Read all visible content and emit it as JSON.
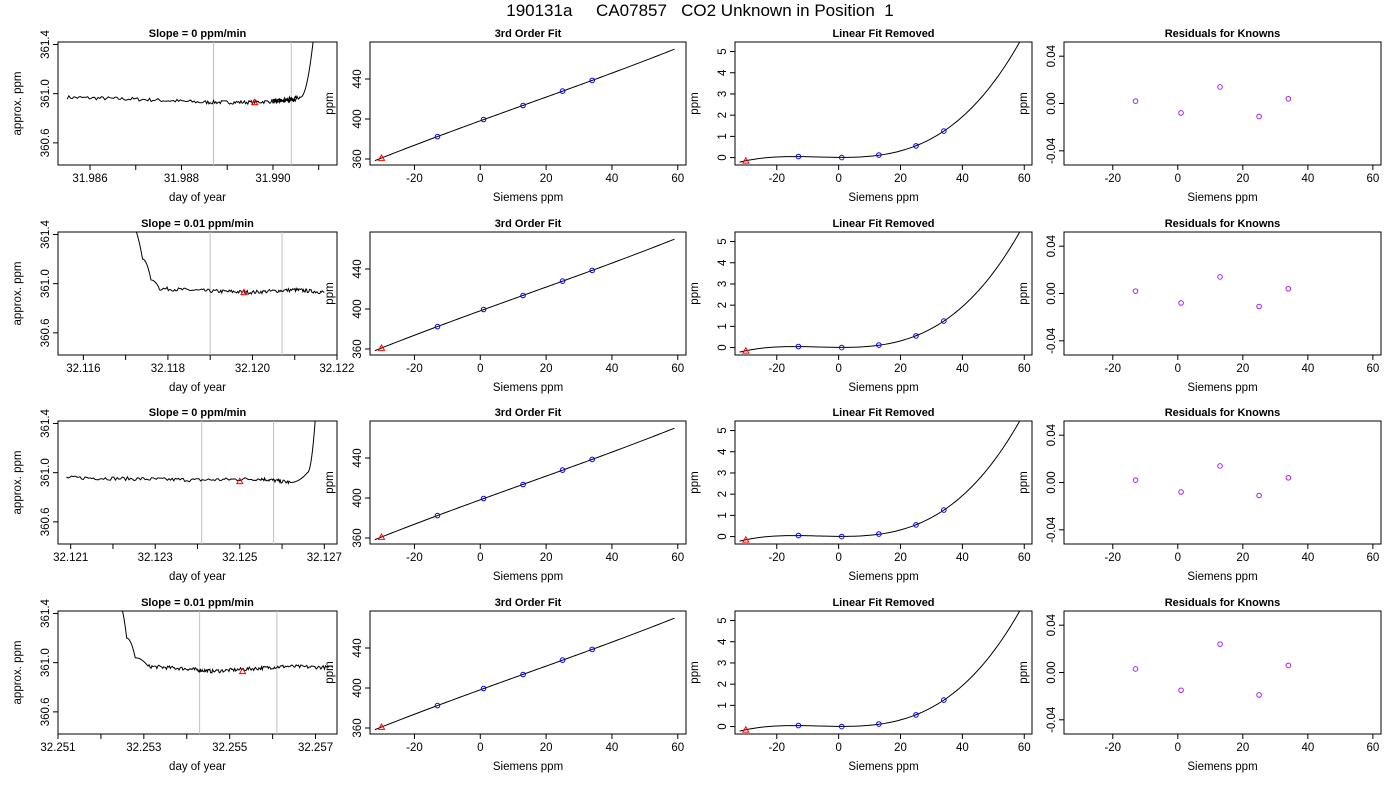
{
  "header": {
    "title_parts": [
      "190131a",
      "CA07857",
      "CO2 Unknown in Position",
      "1"
    ]
  },
  "colors": {
    "line": "#000000",
    "known_points": "#0000FF",
    "unknown_points": "#FF0000",
    "residual_points": "#A020F0",
    "window_lines": "#BEBEBE"
  },
  "panel_labels": {
    "ts_ylabel": "approx. ppm",
    "ts_xlabel": "day of year",
    "fit_title": "3rd Order Fit",
    "fit_ylabel": "ppm",
    "fit_xlabel": "Siemens ppm",
    "lin_title": "Linear Fit Removed",
    "lin_ylabel": "ppm",
    "lin_xlabel": "Siemens ppm",
    "res_title": "Residuals for Knowns",
    "res_ylabel": "ppm",
    "res_xlabel": "Siemens ppm"
  },
  "chart_data": {
    "rows": [
      {
        "timeseries": {
          "type": "line",
          "title": "Slope =  0  ppm/min",
          "xlim": [
            31.9853,
            31.9914
          ],
          "ylim": [
            360.42,
            361.42
          ],
          "xticks": [
            31.986,
            31.988,
            31.99
          ],
          "xtick_labels": [
            "31.986",
            "31.988",
            "31.990"
          ],
          "xminor": [
            31.987,
            31.989,
            31.991
          ],
          "yticks": [
            360.6,
            361.0,
            361.4
          ],
          "ytick_labels": [
            "360.6",
            "361.0",
            "361.4"
          ],
          "window": [
            31.9887,
            31.9904
          ],
          "marker": [
            31.9896,
            360.93
          ],
          "trace": [
            [
              31.9855,
              360.97
            ],
            [
              31.987,
              360.955
            ],
            [
              31.9885,
              360.93
            ],
            [
              31.9895,
              360.93
            ],
            [
              31.9905,
              360.945
            ],
            [
              31.99,
              360.94
            ],
            [
              31.9906,
              360.97
            ],
            [
              31.9909,
              361.5
            ]
          ]
        },
        "fit": {
          "type": "line",
          "xlim": [
            -33.5,
            62.5
          ],
          "ylim": [
            354,
            477
          ],
          "knowns": [
            [
              -13,
              382.4
            ],
            [
              1,
              399.5
            ],
            [
              13,
              413.5
            ],
            [
              25,
              427.9
            ],
            [
              34,
              438.6
            ]
          ],
          "unknown": [
            -30,
            361.0
          ]
        },
        "linear_removed": {
          "type": "line",
          "xlim": [
            -33.5,
            62.5
          ],
          "ylim": [
            -0.35,
            5.45
          ],
          "yticks": [
            0,
            1,
            2,
            3,
            4,
            5
          ],
          "knowns": [
            [
              -13,
              0.05
            ],
            [
              1,
              0.0
            ],
            [
              13,
              0.12
            ],
            [
              25,
              0.55
            ],
            [
              34,
              1.25
            ]
          ],
          "unknown": [
            -30,
            -0.15
          ]
        },
        "residuals": {
          "type": "scatter",
          "xlim": [
            -35,
            62.5
          ],
          "ylim": [
            -0.052,
            0.052
          ],
          "yticks": [
            -0.04,
            0.0,
            0.04
          ],
          "ytick_labels": [
            "-0.04",
            "0.00",
            "0.04"
          ],
          "points": [
            [
              -13,
              0.002
            ],
            [
              1,
              -0.008
            ],
            [
              13,
              0.014
            ],
            [
              25,
              -0.011
            ],
            [
              34,
              0.004
            ]
          ]
        }
      },
      {
        "timeseries": {
          "type": "line",
          "title": "Slope =  0.01  ppm/min",
          "xlim": [
            32.1154,
            32.122
          ],
          "ylim": [
            360.42,
            361.42
          ],
          "xticks": [
            32.116,
            32.118,
            32.12,
            32.122
          ],
          "xtick_labels": [
            "32.116",
            "32.118",
            "32.120",
            "32.122"
          ],
          "xminor": [
            32.117,
            32.119,
            32.121
          ],
          "yticks": [
            360.6,
            361.0,
            361.4
          ],
          "ytick_labels": [
            "360.6",
            "361.0",
            "361.4"
          ],
          "window": [
            32.119,
            32.1207
          ],
          "marker": [
            32.1198,
            360.93
          ],
          "trace": [
            [
              32.1171,
              361.5
            ],
            [
              32.1174,
              361.2
            ],
            [
              32.1176,
              361.03
            ],
            [
              32.1178,
              360.96
            ],
            [
              32.119,
              360.94
            ],
            [
              32.12,
              360.93
            ],
            [
              32.121,
              360.95
            ],
            [
              32.1217,
              360.93
            ]
          ]
        },
        "fit": {
          "type": "line",
          "xlim": [
            -33.5,
            62.5
          ],
          "ylim": [
            354,
            477
          ],
          "knowns": [
            [
              -13,
              382.4
            ],
            [
              1,
              399.5
            ],
            [
              13,
              413.5
            ],
            [
              25,
              427.9
            ],
            [
              34,
              438.6
            ]
          ],
          "unknown": [
            -30,
            361.0
          ]
        },
        "linear_removed": {
          "type": "line",
          "xlim": [
            -33.5,
            62.5
          ],
          "ylim": [
            -0.35,
            5.45
          ],
          "yticks": [
            0,
            1,
            2,
            3,
            4,
            5
          ],
          "knowns": [
            [
              -13,
              0.05
            ],
            [
              1,
              0.0
            ],
            [
              13,
              0.12
            ],
            [
              25,
              0.55
            ],
            [
              34,
              1.25
            ]
          ],
          "unknown": [
            -30,
            -0.15
          ]
        },
        "residuals": {
          "type": "scatter",
          "xlim": [
            -35,
            62.5
          ],
          "ylim": [
            -0.052,
            0.052
          ],
          "yticks": [
            -0.04,
            0.0,
            0.04
          ],
          "ytick_labels": [
            "-0.04",
            "0.00",
            "0.04"
          ],
          "points": [
            [
              -13,
              0.002
            ],
            [
              1,
              -0.008
            ],
            [
              13,
              0.014
            ],
            [
              25,
              -0.011
            ],
            [
              34,
              0.004
            ]
          ]
        }
      },
      {
        "timeseries": {
          "type": "line",
          "title": "Slope =  0  ppm/min",
          "xlim": [
            32.1207,
            32.1273
          ],
          "ylim": [
            360.42,
            361.42
          ],
          "xticks": [
            32.121,
            32.123,
            32.125,
            32.127
          ],
          "xtick_labels": [
            "32.121",
            "32.123",
            "32.125",
            "32.127"
          ],
          "xminor": [
            32.122,
            32.124,
            32.126
          ],
          "yticks": [
            360.6,
            361.0,
            361.4
          ],
          "ytick_labels": [
            "360.6",
            "361.0",
            "361.4"
          ],
          "window": [
            32.1241,
            32.1258
          ],
          "marker": [
            32.125,
            360.93
          ],
          "trace": [
            [
              32.1209,
              360.96
            ],
            [
              32.1225,
              360.95
            ],
            [
              32.124,
              360.94
            ],
            [
              32.1255,
              360.95
            ],
            [
              32.1262,
              360.92
            ],
            [
              32.1266,
              361.0
            ],
            [
              32.1268,
              361.5
            ]
          ]
        },
        "fit": {
          "type": "line",
          "xlim": [
            -33.5,
            62.5
          ],
          "ylim": [
            354,
            477
          ],
          "knowns": [
            [
              -13,
              382.4
            ],
            [
              1,
              399.5
            ],
            [
              13,
              413.5
            ],
            [
              25,
              427.9
            ],
            [
              34,
              438.6
            ]
          ],
          "unknown": [
            -30,
            361.0
          ]
        },
        "linear_removed": {
          "type": "line",
          "xlim": [
            -33.5,
            62.5
          ],
          "ylim": [
            -0.35,
            5.45
          ],
          "yticks": [
            0,
            1,
            2,
            3,
            4,
            5
          ],
          "knowns": [
            [
              -13,
              0.05
            ],
            [
              1,
              0.0
            ],
            [
              13,
              0.12
            ],
            [
              25,
              0.55
            ],
            [
              34,
              1.25
            ]
          ],
          "unknown": [
            -30,
            -0.15
          ]
        },
        "residuals": {
          "type": "scatter",
          "xlim": [
            -35,
            62.5
          ],
          "ylim": [
            -0.052,
            0.052
          ],
          "yticks": [
            -0.04,
            0.0,
            0.04
          ],
          "ytick_labels": [
            "-0.04",
            "0.00",
            "0.04"
          ],
          "points": [
            [
              -13,
              0.002
            ],
            [
              1,
              -0.008
            ],
            [
              13,
              0.014
            ],
            [
              25,
              -0.011
            ],
            [
              34,
              0.004
            ]
          ]
        }
      },
      {
        "timeseries": {
          "type": "line",
          "title": "Slope =  0.01  ppm/min",
          "xlim": [
            32.251,
            32.2575
          ],
          "ylim": [
            360.42,
            361.42
          ],
          "xticks": [
            32.251,
            32.253,
            32.255,
            32.257
          ],
          "xtick_labels": [
            "32.251",
            "32.253",
            "32.255",
            "32.257"
          ],
          "xminor": [
            32.252,
            32.254,
            32.256
          ],
          "yticks": [
            360.6,
            361.0,
            361.4
          ],
          "ytick_labels": [
            "360.6",
            "361.0",
            "361.4"
          ],
          "window": [
            32.2543,
            32.2561
          ],
          "marker": [
            32.2553,
            360.93
          ],
          "trace": [
            [
              32.2524,
              361.5
            ],
            [
              32.2526,
              361.2
            ],
            [
              32.2528,
              361.04
            ],
            [
              32.2531,
              360.97
            ],
            [
              32.254,
              360.95
            ],
            [
              32.2546,
              360.93
            ],
            [
              32.2555,
              360.95
            ],
            [
              32.2563,
              360.97
            ],
            [
              32.2574,
              360.96
            ]
          ]
        },
        "fit": {
          "type": "line",
          "xlim": [
            -33.5,
            62.5
          ],
          "ylim": [
            354,
            477
          ],
          "knowns": [
            [
              -13,
              382.4
            ],
            [
              1,
              399.5
            ],
            [
              13,
              413.5
            ],
            [
              25,
              427.9
            ],
            [
              34,
              438.6
            ]
          ],
          "unknown": [
            -30,
            361.0
          ]
        },
        "linear_removed": {
          "type": "line",
          "xlim": [
            -33.5,
            62.5
          ],
          "ylim": [
            -0.35,
            5.45
          ],
          "yticks": [
            0,
            1,
            2,
            3,
            4,
            5
          ],
          "knowns": [
            [
              -13,
              0.05
            ],
            [
              1,
              0.0
            ],
            [
              13,
              0.12
            ],
            [
              25,
              0.55
            ],
            [
              34,
              1.25
            ]
          ],
          "unknown": [
            -30,
            -0.15
          ]
        },
        "residuals": {
          "type": "scatter",
          "xlim": [
            -35,
            62.5
          ],
          "ylim": [
            -0.052,
            0.052
          ],
          "yticks": [
            -0.04,
            0.0,
            0.04
          ],
          "ytick_labels": [
            "-0.04",
            "0.00",
            "0.04"
          ],
          "points": [
            [
              -13,
              0.003
            ],
            [
              1,
              -0.015
            ],
            [
              13,
              0.024
            ],
            [
              25,
              -0.019
            ],
            [
              34,
              0.006
            ]
          ]
        }
      }
    ],
    "siemens_xticks": [
      -20,
      0,
      20,
      40,
      60
    ],
    "fit_yticks": [
      360,
      400,
      440
    ]
  }
}
